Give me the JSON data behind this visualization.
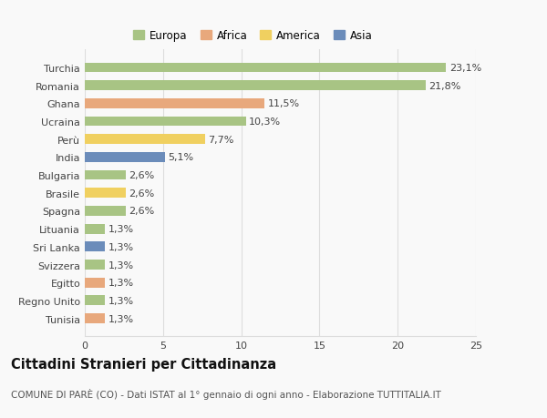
{
  "categories": [
    "Tunisia",
    "Regno Unito",
    "Egitto",
    "Svizzera",
    "Sri Lanka",
    "Lituania",
    "Spagna",
    "Brasile",
    "Bulgaria",
    "India",
    "Perù",
    "Ucraina",
    "Ghana",
    "Romania",
    "Turchia"
  ],
  "values": [
    1.3,
    1.3,
    1.3,
    1.3,
    1.3,
    1.3,
    2.6,
    2.6,
    2.6,
    5.1,
    7.7,
    10.3,
    11.5,
    21.8,
    23.1
  ],
  "labels": [
    "1,3%",
    "1,3%",
    "1,3%",
    "1,3%",
    "1,3%",
    "1,3%",
    "2,6%",
    "2,6%",
    "2,6%",
    "5,1%",
    "7,7%",
    "10,3%",
    "11,5%",
    "21,8%",
    "23,1%"
  ],
  "colors": [
    "#e8a87c",
    "#a8c484",
    "#e8a87c",
    "#a8c484",
    "#6b8cba",
    "#a8c484",
    "#a8c484",
    "#f0d060",
    "#a8c484",
    "#6b8cba",
    "#f0d060",
    "#a8c484",
    "#e8a87c",
    "#a8c484",
    "#a8c484"
  ],
  "legend": [
    {
      "label": "Europa",
      "color": "#a8c484"
    },
    {
      "label": "Africa",
      "color": "#e8a87c"
    },
    {
      "label": "America",
      "color": "#f0d060"
    },
    {
      "label": "Asia",
      "color": "#6b8cba"
    }
  ],
  "title": "Cittadini Stranieri per Cittadinanza",
  "subtitle": "COMUNE DI PARÈ (CO) - Dati ISTAT al 1° gennaio di ogni anno - Elaborazione TUTTITALIA.IT",
  "xlim": [
    0,
    25
  ],
  "xticks": [
    0,
    5,
    10,
    15,
    20,
    25
  ],
  "background_color": "#f9f9f9",
  "grid_color": "#dddddd",
  "bar_height": 0.55,
  "label_fontsize": 8,
  "tick_fontsize": 8,
  "title_fontsize": 10.5,
  "subtitle_fontsize": 7.5
}
